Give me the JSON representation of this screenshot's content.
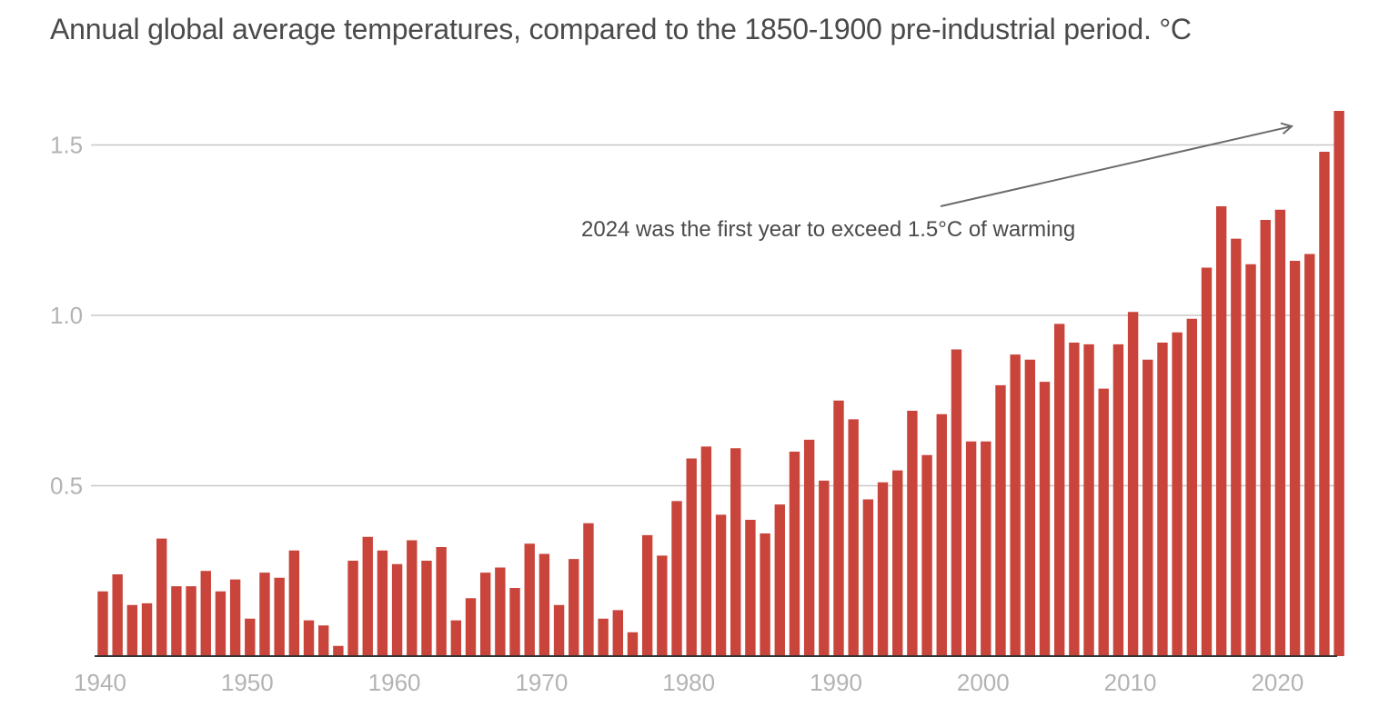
{
  "chart_data": {
    "type": "bar",
    "title": "Annual global average temperatures, compared to the 1850-1900 pre-industrial period. °C",
    "xlabel": "",
    "ylabel": "",
    "ylim": [
      0,
      1.6
    ],
    "yticks": [
      {
        "value": 0.5,
        "label": "0.5"
      },
      {
        "value": 1.0,
        "label": "1.0"
      },
      {
        "value": 1.5,
        "label": "1.5"
      }
    ],
    "xticks": [
      {
        "year": 1940,
        "label": "1940"
      },
      {
        "year": 1950,
        "label": "1950"
      },
      {
        "year": 1960,
        "label": "1960"
      },
      {
        "year": 1970,
        "label": "1970"
      },
      {
        "year": 1980,
        "label": "1980"
      },
      {
        "year": 1990,
        "label": "1990"
      },
      {
        "year": 2000,
        "label": "2000"
      },
      {
        "year": 2010,
        "label": "2010"
      },
      {
        "year": 2020,
        "label": "2020"
      }
    ],
    "grid": true,
    "bar_color": "#c9443b",
    "categories": [
      1940,
      1941,
      1942,
      1943,
      1944,
      1945,
      1946,
      1947,
      1948,
      1949,
      1950,
      1951,
      1952,
      1953,
      1954,
      1955,
      1956,
      1957,
      1958,
      1959,
      1960,
      1961,
      1962,
      1963,
      1964,
      1965,
      1966,
      1967,
      1968,
      1969,
      1970,
      1971,
      1972,
      1973,
      1974,
      1975,
      1976,
      1977,
      1978,
      1979,
      1980,
      1981,
      1982,
      1983,
      1984,
      1985,
      1986,
      1987,
      1988,
      1989,
      1990,
      1991,
      1992,
      1993,
      1994,
      1995,
      1996,
      1997,
      1998,
      1999,
      2000,
      2001,
      2002,
      2003,
      2004,
      2005,
      2006,
      2007,
      2008,
      2009,
      2010,
      2011,
      2012,
      2013,
      2014,
      2015,
      2016,
      2017,
      2018,
      2019,
      2020,
      2021,
      2022,
      2023,
      2024
    ],
    "values": [
      0.19,
      0.24,
      0.15,
      0.155,
      0.345,
      0.205,
      0.205,
      0.25,
      0.19,
      0.225,
      0.11,
      0.245,
      0.23,
      0.31,
      0.105,
      0.09,
      0.03,
      0.28,
      0.35,
      0.31,
      0.27,
      0.34,
      0.28,
      0.32,
      0.105,
      0.17,
      0.245,
      0.26,
      0.2,
      0.33,
      0.3,
      0.15,
      0.285,
      0.39,
      0.11,
      0.135,
      0.07,
      0.355,
      0.295,
      0.455,
      0.58,
      0.615,
      0.415,
      0.61,
      0.4,
      0.36,
      0.445,
      0.6,
      0.635,
      0.515,
      0.75,
      0.695,
      0.46,
      0.51,
      0.545,
      0.72,
      0.59,
      0.71,
      0.9,
      0.63,
      0.63,
      0.795,
      0.885,
      0.87,
      0.805,
      0.975,
      0.92,
      0.915,
      0.785,
      0.915,
      1.01,
      0.87,
      0.92,
      0.95,
      0.99,
      1.14,
      1.32,
      1.225,
      1.15,
      1.28,
      1.31,
      1.16,
      1.18,
      1.48,
      1.6
    ],
    "annotation": {
      "text": "2024 was the first year to exceed 1.5°C of warming",
      "target_year": 2024
    }
  }
}
